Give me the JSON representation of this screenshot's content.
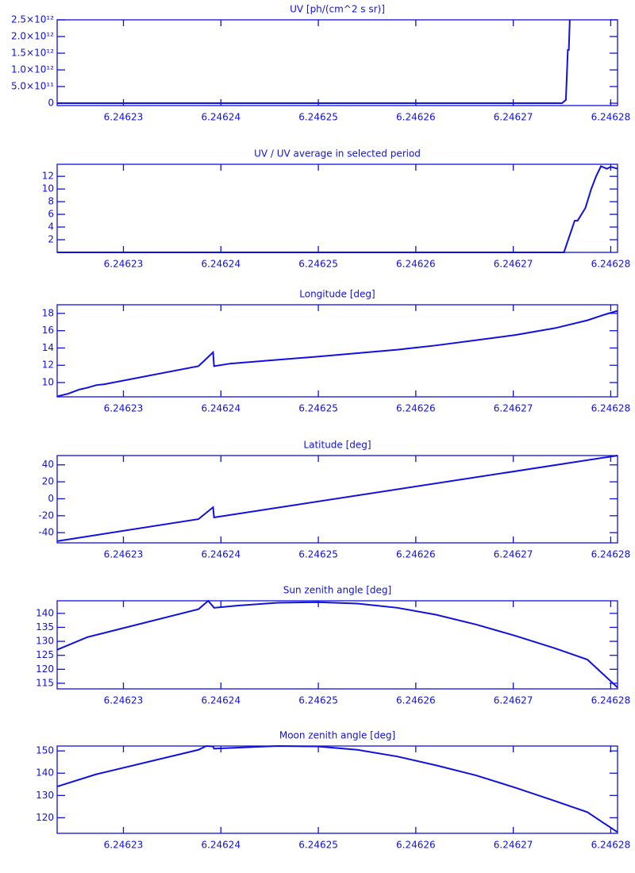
{
  "chart_data": [
    {
      "type": "line",
      "title": "UV [ph/(cm^2 s sr)]",
      "color": "#1010e0",
      "x": [
        6.2462232,
        6.246275,
        6.2462754,
        6.2462756,
        6.2462757,
        6.2462758
      ],
      "values": [
        0,
        0,
        100000000000,
        1600000000000,
        1600000000000,
        2500000000000
      ],
      "xlim": [
        6.2462232,
        6.2462807
      ],
      "xticks": [
        6.24623,
        6.24624,
        6.24625,
        6.24626,
        6.24627,
        6.24628
      ],
      "ylim": [
        -70000000000,
        2500000000000
      ],
      "yticks": [
        0,
        {
          "value": 500000000000,
          "label": "5.0×10¹¹"
        },
        {
          "value": 1000000000000,
          "label": "1.0×10¹²"
        },
        {
          "value": 1500000000000,
          "label": "1.5×10¹²"
        },
        {
          "value": 2000000000000,
          "label": "2.0×10¹²"
        },
        {
          "value": 2500000000000,
          "label": "2.5×10¹²"
        }
      ]
    },
    {
      "type": "line",
      "title": "UV / UV average in selected period",
      "color": "#1010e0",
      "x": [
        6.2462232,
        6.2462752,
        6.2462763,
        6.2462766,
        6.2462774,
        6.246278,
        6.2462785,
        6.246279,
        6.2462796,
        6.24628,
        6.2462807
      ],
      "values": [
        0,
        0,
        5,
        5,
        7,
        10,
        12,
        13.6,
        13.2,
        13.5,
        13.2
      ],
      "xlim": [
        6.2462232,
        6.2462807
      ],
      "xticks": [
        6.24623,
        6.24624,
        6.24625,
        6.24626,
        6.24627,
        6.24628
      ],
      "ylim": [
        0,
        13.9
      ],
      "yticks": [
        2,
        4,
        6,
        8,
        10,
        12
      ]
    },
    {
      "type": "line",
      "title": "Longitude [deg]",
      "color": "#1010e0",
      "x": [
        6.2462232,
        6.2462243,
        6.2462255,
        6.2462263,
        6.2462272,
        6.246228,
        6.2462377,
        6.2462392,
        6.2462393,
        6.246241,
        6.2462499,
        6.2462581,
        6.2462621,
        6.2462662,
        6.2462702,
        6.2462743,
        6.2462776,
        6.2462792,
        6.2462807
      ],
      "values": [
        8.4,
        8.7,
        9.2,
        9.4,
        9.7,
        9.8,
        11.9,
        13.5,
        11.9,
        12.2,
        13.0,
        13.8,
        14.3,
        14.9,
        15.5,
        16.3,
        17.2,
        17.8,
        18.3
      ],
      "xlim": [
        6.2462232,
        6.2462807
      ],
      "xticks": [
        6.24623,
        6.24624,
        6.24625,
        6.24626,
        6.24627,
        6.24628
      ],
      "ylim": [
        8.35,
        19.0
      ],
      "yticks": [
        10,
        12,
        14,
        16,
        18
      ]
    },
    {
      "type": "line",
      "title": "Latitude [deg]",
      "color": "#1010e0",
      "x": [
        6.2462232,
        6.2462377,
        6.2462392,
        6.2462393,
        6.2462807
      ],
      "values": [
        -50,
        -24,
        -10,
        -22,
        51
      ],
      "xlim": [
        6.2462232,
        6.2462807
      ],
      "xticks": [
        6.24623,
        6.24624,
        6.24625,
        6.24626,
        6.24627,
        6.24628
      ],
      "ylim": [
        -52,
        51
      ],
      "yticks": [
        -40,
        -20,
        0,
        20,
        40
      ]
    },
    {
      "type": "line",
      "title": "Sun zenith angle [deg]",
      "color": "#1010e0",
      "x": [
        6.2462232,
        6.2462263,
        6.2462377,
        6.2462387,
        6.2462393,
        6.2462418,
        6.2462458,
        6.2462499,
        6.246254,
        6.2462581,
        6.2462621,
        6.2462662,
        6.2462702,
        6.2462743,
        6.2462776,
        6.2462807
      ],
      "values": [
        127,
        131.5,
        141.5,
        144.5,
        142,
        142.8,
        143.8,
        144,
        143.5,
        142,
        139.5,
        136,
        132,
        127.5,
        123.5,
        113.5
      ],
      "xlim": [
        6.2462232,
        6.2462807
      ],
      "xticks": [
        6.24623,
        6.24624,
        6.24625,
        6.24626,
        6.24627,
        6.24628
      ],
      "ylim": [
        113,
        144.5
      ],
      "yticks": [
        115,
        120,
        125,
        130,
        135,
        140
      ]
    },
    {
      "type": "line",
      "title": "Moon zenith angle [deg]",
      "color": "#1010e0",
      "x": [
        6.2462232,
        6.2462272,
        6.2462377,
        6.2462385,
        6.2462392,
        6.2462393,
        6.2462418,
        6.2462458,
        6.2462499,
        6.246254,
        6.2462581,
        6.2462621,
        6.2462662,
        6.2462702,
        6.2462743,
        6.2462776,
        6.2462807
      ],
      "values": [
        134,
        139.5,
        150.5,
        152.2,
        152,
        151,
        151.5,
        152.2,
        152,
        150.5,
        147.5,
        143.5,
        139,
        133.5,
        127.5,
        122.5,
        113.5
      ],
      "xlim": [
        6.2462232,
        6.2462807
      ],
      "xticks": [
        6.24623,
        6.24624,
        6.24625,
        6.24626,
        6.24627,
        6.24628
      ],
      "ylim": [
        113,
        152.2
      ],
      "yticks": [
        120,
        130,
        140,
        150
      ]
    }
  ]
}
